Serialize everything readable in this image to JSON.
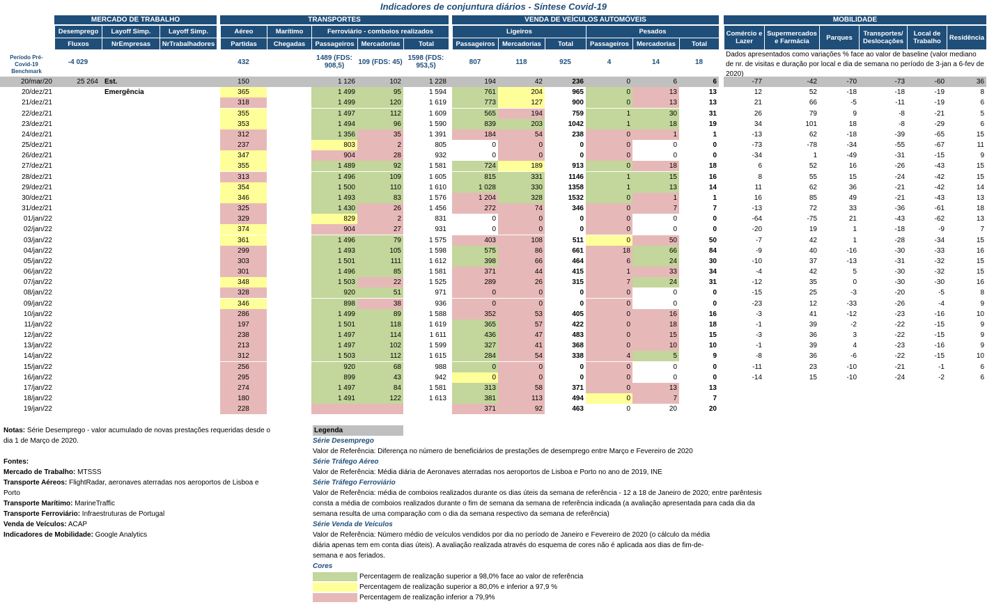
{
  "title": "Indicadores de conjuntura diários - Síntese Covid-19",
  "groups": {
    "mercado": "MERCADO DE TRABALHO",
    "transportes": "TRANSPORTES",
    "venda": "VENDA DE VEÍCULOS AUTOMÓVEIS",
    "mobilidade": "MOBILIDADE"
  },
  "sub": {
    "desemprego": "Desemprego",
    "layoff1": "Layoff Simp.",
    "layoff2": "Layoff Simp.",
    "aereo": "Aéreo",
    "maritimo": "Marítimo",
    "ferroviario": "Ferroviário - comboios realizados",
    "ligeiros": "Ligeiros",
    "pesados": "Pesados",
    "comercio": "Comércio e Lazer",
    "supermercados": "Supermercados e Farmácia",
    "parques": "Parques",
    "transportes": "Transportes/ Deslocações",
    "trabalho": "Local de Trabalho",
    "residencia": "Residência"
  },
  "sub3": {
    "fluxos": "Fluxos",
    "nrempresas": "NrEmpresas",
    "nrtrabalhadores": "NrTrabalhadores",
    "partidas": "Partidas",
    "chegadas": "Chegadas",
    "passageiros": "Passageiros",
    "mercadorias": "Mercadorias",
    "total": "Total",
    "lig_pass": "Passageiros",
    "lig_merc": "Mercadorias",
    "lig_total": "Total",
    "pes_pass": "Passageiros",
    "pes_merc": "Mercadorias",
    "pes_total": "Total"
  },
  "benchmark": {
    "label": "Período Pré-Covid-19 Benchmark",
    "desemprego": "-4 029",
    "aereo": "432",
    "fer_pass": "1489 (FDS: 908,5)",
    "fer_merc": "109 (FDS: 45)",
    "fer_total": "1598 (FDS: 953,5)",
    "lig_pass": "807",
    "lig_merc": "118",
    "lig_total": "925",
    "pes_pass": "4",
    "pes_merc": "14",
    "pes_total": "18"
  },
  "mob_note": "Dados apresentados como variações % face ao valor de baseline (valor mediano de nr. de visitas e duração por local e dia de semana no período de 3-jan a 6-fev de 2020)",
  "colors": {
    "green": "#c3d69b",
    "yellow": "#ffff99",
    "pink": "#e6b9b8",
    "header": "#1f4e79"
  },
  "rows": [
    [
      "20/mar/20",
      "25 264",
      "Est. Emergência",
      "150",
      "",
      "1 126",
      "102",
      "1 228",
      "194",
      "42",
      "236",
      "0",
      "6",
      "6",
      "-77",
      "-42",
      "-70",
      "-73",
      "-60",
      "36"
    ],
    [
      "20/dez/21",
      "",
      "",
      "365",
      "",
      "1 499",
      "95",
      "1 594",
      "761",
      "204",
      "965",
      "0",
      "13",
      "13",
      "12",
      "52",
      "-18",
      "-18",
      "-19",
      "8"
    ],
    [
      "21/dez/21",
      "",
      "",
      "318",
      "",
      "1 499",
      "120",
      "1 619",
      "773",
      "127",
      "900",
      "0",
      "13",
      "13",
      "21",
      "66",
      "-5",
      "-11",
      "-19",
      "6"
    ],
    [
      "22/dez/21",
      "",
      "",
      "355",
      "",
      "1 497",
      "112",
      "1 609",
      "565",
      "194",
      "759",
      "1",
      "30",
      "31",
      "26",
      "79",
      "9",
      "-8",
      "-21",
      "5"
    ],
    [
      "23/dez/21",
      "",
      "",
      "353",
      "",
      "1 494",
      "96",
      "1 590",
      "839",
      "203",
      "1042",
      "1",
      "18",
      "19",
      "34",
      "101",
      "18",
      "-8",
      "-29",
      "6"
    ],
    [
      "24/dez/21",
      "",
      "",
      "312",
      "",
      "1 356",
      "35",
      "1 391",
      "184",
      "54",
      "238",
      "0",
      "1",
      "1",
      "-13",
      "62",
      "-18",
      "-39",
      "-65",
      "15"
    ],
    [
      "25/dez/21",
      "",
      "",
      "237",
      "",
      "803",
      "2",
      "805",
      "0",
      "0",
      "0",
      "0",
      "0",
      "0",
      "-73",
      "-78",
      "-34",
      "-55",
      "-67",
      "11"
    ],
    [
      "26/dez/21",
      "",
      "",
      "347",
      "",
      "904",
      "28",
      "932",
      "0",
      "0",
      "0",
      "0",
      "0",
      "0",
      "-34",
      "1",
      "-49",
      "-31",
      "-15",
      "9"
    ],
    [
      "27/dez/21",
      "",
      "",
      "355",
      "",
      "1 489",
      "92",
      "1 581",
      "724",
      "189",
      "913",
      "0",
      "18",
      "18",
      "6",
      "52",
      "16",
      "-26",
      "-43",
      "15"
    ],
    [
      "28/dez/21",
      "",
      "",
      "313",
      "",
      "1 496",
      "109",
      "1 605",
      "815",
      "331",
      "1146",
      "1",
      "15",
      "16",
      "8",
      "55",
      "15",
      "-24",
      "-42",
      "15"
    ],
    [
      "29/dez/21",
      "",
      "",
      "354",
      "",
      "1 500",
      "110",
      "1 610",
      "1 028",
      "330",
      "1358",
      "1",
      "13",
      "14",
      "11",
      "62",
      "36",
      "-21",
      "-42",
      "14"
    ],
    [
      "30/dez/21",
      "",
      "",
      "346",
      "",
      "1 493",
      "83",
      "1 576",
      "1 204",
      "328",
      "1532",
      "0",
      "1",
      "1",
      "16",
      "85",
      "49",
      "-21",
      "-43",
      "13"
    ],
    [
      "31/dez/21",
      "",
      "",
      "325",
      "",
      "1 430",
      "26",
      "1 456",
      "272",
      "74",
      "346",
      "0",
      "7",
      "7",
      "-13",
      "72",
      "33",
      "-36",
      "-61",
      "18"
    ],
    [
      "01/jan/22",
      "",
      "",
      "329",
      "",
      "829",
      "2",
      "831",
      "0",
      "0",
      "0",
      "0",
      "0",
      "0",
      "-64",
      "-75",
      "21",
      "-43",
      "-62",
      "13"
    ],
    [
      "02/jan/22",
      "",
      "",
      "374",
      "",
      "904",
      "27",
      "931",
      "0",
      "0",
      "0",
      "0",
      "0",
      "0",
      "-20",
      "19",
      "1",
      "-18",
      "-9",
      "7"
    ],
    [
      "03/jan/22",
      "",
      "",
      "361",
      "",
      "1 496",
      "79",
      "1 575",
      "403",
      "108",
      "511",
      "0",
      "50",
      "50",
      "-7",
      "42",
      "1",
      "-28",
      "-34",
      "15"
    ],
    [
      "04/jan/22",
      "",
      "",
      "299",
      "",
      "1 493",
      "105",
      "1 598",
      "575",
      "86",
      "661",
      "18",
      "66",
      "84",
      "-9",
      "40",
      "-16",
      "-30",
      "-33",
      "16"
    ],
    [
      "05/jan/22",
      "",
      "",
      "303",
      "",
      "1 501",
      "111",
      "1 612",
      "398",
      "66",
      "464",
      "6",
      "24",
      "30",
      "-10",
      "37",
      "-13",
      "-31",
      "-32",
      "15"
    ],
    [
      "06/jan/22",
      "",
      "",
      "301",
      "",
      "1 496",
      "85",
      "1 581",
      "371",
      "44",
      "415",
      "1",
      "33",
      "34",
      "-4",
      "42",
      "5",
      "-30",
      "-32",
      "15"
    ],
    [
      "07/jan/22",
      "",
      "",
      "348",
      "",
      "1 503",
      "22",
      "1 525",
      "289",
      "26",
      "315",
      "7",
      "24",
      "31",
      "-12",
      "35",
      "0",
      "-30",
      "-30",
      "16"
    ],
    [
      "08/jan/22",
      "",
      "",
      "328",
      "",
      "920",
      "51",
      "971",
      "0",
      "0",
      "0",
      "0",
      "0",
      "0",
      "-15",
      "25",
      "-3",
      "-20",
      "-5",
      "8"
    ],
    [
      "09/jan/22",
      "",
      "",
      "346",
      "",
      "898",
      "38",
      "936",
      "0",
      "0",
      "0",
      "0",
      "0",
      "0",
      "-23",
      "12",
      "-33",
      "-26",
      "-4",
      "9"
    ],
    [
      "10/jan/22",
      "",
      "",
      "286",
      "",
      "1 499",
      "89",
      "1 588",
      "352",
      "53",
      "405",
      "0",
      "16",
      "16",
      "-3",
      "41",
      "-12",
      "-23",
      "-16",
      "10"
    ],
    [
      "11/jan/22",
      "",
      "",
      "197",
      "",
      "1 501",
      "118",
      "1 619",
      "365",
      "57",
      "422",
      "0",
      "18",
      "18",
      "-1",
      "39",
      "-2",
      "-22",
      "-15",
      "9"
    ],
    [
      "12/jan/22",
      "",
      "",
      "238",
      "",
      "1 497",
      "114",
      "1 611",
      "436",
      "47",
      "483",
      "0",
      "15",
      "15",
      "-3",
      "36",
      "3",
      "-22",
      "-15",
      "9"
    ],
    [
      "13/jan/22",
      "",
      "",
      "213",
      "",
      "1 497",
      "102",
      "1 599",
      "327",
      "41",
      "368",
      "0",
      "10",
      "10",
      "-1",
      "39",
      "4",
      "-23",
      "-16",
      "9"
    ],
    [
      "14/jan/22",
      "",
      "",
      "312",
      "",
      "1 503",
      "112",
      "1 615",
      "284",
      "54",
      "338",
      "4",
      "5",
      "9",
      "-8",
      "36",
      "-6",
      "-22",
      "-15",
      "10"
    ],
    [
      "15/jan/22",
      "",
      "",
      "256",
      "",
      "920",
      "68",
      "988",
      "0",
      "0",
      "0",
      "0",
      "0",
      "0",
      "-11",
      "23",
      "-10",
      "-21",
      "-1",
      "6"
    ],
    [
      "16/jan/22",
      "",
      "",
      "295",
      "",
      "899",
      "43",
      "942",
      "0",
      "0",
      "0",
      "0",
      "0",
      "0",
      "-14",
      "15",
      "-10",
      "-24",
      "-2",
      "6"
    ],
    [
      "17/jan/22",
      "",
      "",
      "274",
      "",
      "1 497",
      "84",
      "1 581",
      "313",
      "58",
      "371",
      "0",
      "13",
      "13",
      "",
      "",
      "",
      "",
      "",
      ""
    ],
    [
      "18/jan/22",
      "",
      "",
      "180",
      "",
      "1 491",
      "122",
      "1 613",
      "381",
      "113",
      "494",
      "0",
      "7",
      "7",
      "",
      "",
      "",
      "",
      "",
      ""
    ],
    [
      "19/jan/22",
      "",
      "",
      "228",
      "",
      "",
      "",
      "",
      "371",
      "92",
      "463",
      "0",
      "20",
      "20",
      "",
      "",
      "",
      "",
      "",
      ""
    ]
  ],
  "notes": {
    "nota_label": "Notas:",
    "nota_text": " Série Desemprego - valor acumulado de novas prestações requeridas desde o dia 1 de Março de 2020.",
    "fontes": "Fontes:",
    "src": [
      {
        "k": "Mercado de Trabalho:",
        "v": " MTSSS"
      },
      {
        "k": "Transporte Aéreos:",
        "v": " FlightRadar, aeronaves aterradas nos aeroportos de Lisboa e Porto"
      },
      {
        "k": "Transporte Marítimo:",
        "v": " MarineTraffic"
      },
      {
        "k": "Transporte Ferroviário:",
        "v": " Infraestruturas de Portugal"
      },
      {
        "k": "Venda de Veículos:",
        "v": " ACAP"
      },
      {
        "k": "Indicadores de Mobilidade:",
        "v": " Google Analytics"
      }
    ]
  },
  "legend": {
    "head": "Legenda",
    "s1": "Série Desemprego",
    "s1t": "Valor de Referência: Diferença no número de beneficiários de prestações de desemprego entre Março e Fevereiro de 2020",
    "s2": "Série Tráfego Aéreo",
    "s2t": "Valor de Referência: Média diária de Aeronaves aterradas nos aeroportos de Lisboa e Porto no ano de 2019, INE",
    "s3": "Série Tráfego Ferroviário",
    "s3t": "Valor de Referência: média de comboios realizados durante os dias úteis da semana de referência - 12 a 18 de Janeiro de 2020; entre parêntesis consta a média de comboios realizados durante o fim de semana da semana de referência indicada (a avaliação apresentada para cada dia da semana resulta de uma comparação com o dia da semana respectivo da semana de referência)",
    "s4": "Série Venda de Veículos",
    "s4t": "Valor de Referência: Número médio de veículos vendidos por dia no período de Janeiro e Fevereiro de 2020 (o cálculo da média diária apenas tem em conta dias úteis). A avaliação realizada através do esquema de cores não é aplicada aos dias de fim-de-semana e aos feriados.",
    "cores": "Cores",
    "c1": "Percentagem de realização superior a 98,0% face ao valor de referência",
    "c2": "Percentagem de realização superior a 80,0% e inferior a 97,9 %",
    "c3": "Percentagem de realização inferior a 79,9%"
  }
}
